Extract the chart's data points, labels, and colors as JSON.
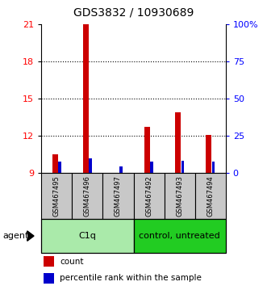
{
  "title": "GDS3832 / 10930689",
  "samples": [
    "GSM467495",
    "GSM467496",
    "GSM467497",
    "GSM467492",
    "GSM467493",
    "GSM467494"
  ],
  "count_values": [
    10.5,
    21.0,
    9.0,
    12.7,
    13.9,
    12.1
  ],
  "percentile_values": [
    9.9,
    10.2,
    9.55,
    9.9,
    10.0,
    9.9
  ],
  "ylim": [
    9,
    21
  ],
  "yticks_left": [
    9,
    12,
    15,
    18,
    21
  ],
  "yticks_right_pos": [
    9,
    12,
    15,
    18,
    21
  ],
  "right_axis_labels": [
    "0",
    "25",
    "50",
    "75",
    "100%"
  ],
  "groups": [
    {
      "label": "C1q",
      "cols": [
        0,
        1,
        2
      ],
      "color": "#aaf0aa"
    },
    {
      "label": "control, untreated",
      "cols": [
        3,
        4,
        5
      ],
      "color": "#33dd33"
    }
  ],
  "bar_color_count": "#cc0000",
  "bar_color_percentile": "#0000cc",
  "sample_box_color": "#c8c8c8",
  "agent_label": "agent",
  "legend_count": "count",
  "legend_percentile": "percentile rank within the sample"
}
